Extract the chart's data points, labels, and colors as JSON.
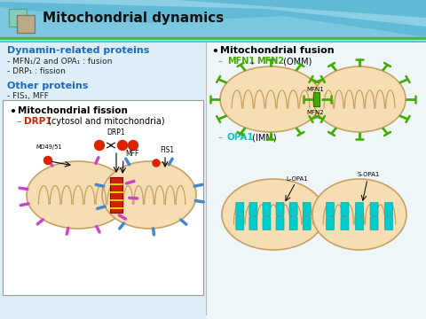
{
  "title": "Mitochondrial dynamics",
  "bg_color": "#e8f4f8",
  "header_bg_top": "#a8d8ea",
  "header_bg_bottom": "#5bb8d4",
  "header_text_color": "#1a1a1a",
  "section1_title": "Dynamin-related proteins",
  "section1_color": "#1a6bbf",
  "section1_lines": [
    "- MFN₁/2 and OPA₁ : fusion",
    "- DRP₁ : fission"
  ],
  "section2_title": "Other proteins",
  "section2_color": "#1a6bbf",
  "section2_lines": [
    "- FIS₁, MFF"
  ],
  "fission_box_title": "Mitochondrial fission",
  "fission_subtitle_red": "DRP1",
  "fission_subtitle_rest": " (cytosol and mitochondria)",
  "fission_subtitle_color": "#cc2200",
  "fusion_title": "Mitochondrial fusion",
  "opa1_label": "OPA1",
  "opa1_imm": " (IMM)",
  "mfn1_label": "MFN1",
  "mfn2_label": "MFN2",
  "omm_label": " (OMM)",
  "mito_fill": "#f5deb3",
  "mito_edge": "#c8a060",
  "cristae_color": "#c8a060",
  "fusion_green": "#44aa00",
  "fission_red": "#cc2200",
  "opa1_cyan": "#00cccc",
  "drp1_red": "#dd2200",
  "purple_spike": "#cc44cc",
  "blue_spike": "#4488cc",
  "yellow_band": "#ffee00",
  "divider_color": "#bbbbbb",
  "green_line1": "#44bb44",
  "green_line2": "#44ccee"
}
